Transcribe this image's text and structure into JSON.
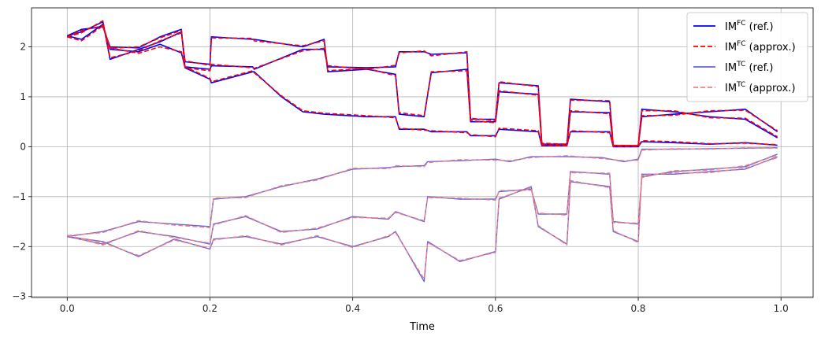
{
  "chart_data": {
    "type": "line",
    "title": "",
    "xlabel": "Time",
    "ylabel": "",
    "xlim": [
      -0.05,
      1.045
    ],
    "ylim": [
      -3.02,
      2.78
    ],
    "xticks": [
      0.0,
      0.2,
      0.4,
      0.6,
      0.8,
      1.0
    ],
    "xtick_labels": [
      "0.0",
      "0.2",
      "0.4",
      "0.6",
      "0.8",
      "1.0"
    ],
    "yticks": [
      -3,
      -2,
      -1,
      0,
      1,
      2
    ],
    "ytick_labels": [
      "−3",
      "−2",
      "−1",
      "0",
      "1",
      "2"
    ],
    "grid": true,
    "legend_position": "top-right",
    "legend": [
      {
        "base": "IM",
        "sup": "FC",
        "suffix": " (ref.)",
        "color": "#0000ff",
        "dash": "solid"
      },
      {
        "base": "IM",
        "sup": "FC",
        "suffix": " (approx.)",
        "color": "#ff0000",
        "dash": "dashed"
      },
      {
        "base": "IM",
        "sup": "TC",
        "suffix": " (ref.)",
        "color": "#6666dd",
        "dash": "solid"
      },
      {
        "base": "IM",
        "sup": "TC",
        "suffix": " (approx.)",
        "color": "#f08080",
        "dash": "dashed"
      }
    ],
    "series": [
      {
        "group": "FC",
        "kind": "ref",
        "x": [
          0.0,
          0.02,
          0.05,
          0.06,
          0.1,
          0.13,
          0.16,
          0.165,
          0.2,
          0.202,
          0.26,
          0.262,
          0.33,
          0.36,
          0.365,
          0.42,
          0.46,
          0.465,
          0.5,
          0.51,
          0.56,
          0.565,
          0.6,
          0.605,
          0.66,
          0.665,
          0.7,
          0.705,
          0.76,
          0.765,
          0.8,
          0.805,
          0.85,
          0.9,
          0.95,
          0.995
        ],
        "y": [
          2.22,
          2.15,
          2.45,
          1.95,
          1.9,
          2.05,
          1.88,
          1.6,
          1.55,
          1.62,
          1.6,
          1.55,
          1.95,
          1.95,
          1.6,
          1.58,
          1.6,
          1.9,
          1.9,
          1.85,
          1.88,
          0.55,
          0.55,
          1.28,
          1.22,
          0.05,
          0.05,
          0.95,
          0.9,
          0.02,
          0.02,
          0.75,
          0.7,
          0.6,
          0.55,
          0.18
        ]
      },
      {
        "group": "FC",
        "kind": "ref",
        "x": [
          0.0,
          0.02,
          0.05,
          0.06,
          0.1,
          0.13,
          0.16,
          0.165,
          0.2,
          0.202,
          0.26,
          0.262,
          0.33,
          0.36,
          0.365,
          0.42,
          0.46,
          0.465,
          0.5,
          0.51,
          0.56,
          0.565,
          0.6,
          0.605,
          0.66,
          0.665,
          0.7,
          0.705,
          0.76,
          0.765,
          0.8,
          0.805,
          0.85,
          0.9,
          0.95,
          0.995
        ],
        "y": [
          2.22,
          2.3,
          2.5,
          1.75,
          1.95,
          2.1,
          2.3,
          1.7,
          1.65,
          2.2,
          2.15,
          2.15,
          2.0,
          2.15,
          1.5,
          1.55,
          1.45,
          0.65,
          0.6,
          1.48,
          1.55,
          0.5,
          0.5,
          1.1,
          1.05,
          0.02,
          0.02,
          0.7,
          0.68,
          0.01,
          0.01,
          0.6,
          0.65,
          0.7,
          0.75,
          0.3
        ]
      },
      {
        "group": "FC",
        "kind": "ref",
        "x": [
          0.0,
          0.02,
          0.05,
          0.06,
          0.1,
          0.13,
          0.16,
          0.165,
          0.2,
          0.202,
          0.26,
          0.262,
          0.3,
          0.33,
          0.36,
          0.42,
          0.46,
          0.465,
          0.5,
          0.51,
          0.56,
          0.565,
          0.6,
          0.605,
          0.66,
          0.665,
          0.7,
          0.705,
          0.76,
          0.765,
          0.8,
          0.805,
          0.85,
          0.9,
          0.95,
          0.995
        ],
        "y": [
          2.22,
          2.35,
          2.4,
          2.0,
          1.98,
          2.2,
          2.35,
          1.58,
          1.35,
          1.28,
          1.5,
          1.5,
          1.0,
          0.7,
          0.65,
          0.6,
          0.6,
          0.35,
          0.35,
          0.3,
          0.3,
          0.22,
          0.22,
          0.35,
          0.3,
          0.02,
          0.02,
          0.3,
          0.3,
          0.0,
          0.0,
          0.1,
          0.08,
          0.05,
          0.08,
          0.03
        ]
      },
      {
        "group": "FC",
        "kind": "approx",
        "x": [
          0.0,
          0.02,
          0.05,
          0.06,
          0.1,
          0.13,
          0.16,
          0.165,
          0.2,
          0.202,
          0.26,
          0.262,
          0.33,
          0.36,
          0.365,
          0.42,
          0.46,
          0.465,
          0.5,
          0.51,
          0.56,
          0.565,
          0.6,
          0.605,
          0.66,
          0.665,
          0.7,
          0.705,
          0.76,
          0.765,
          0.8,
          0.805,
          0.85,
          0.9,
          0.95,
          0.995
        ],
        "y": [
          2.2,
          2.12,
          2.42,
          1.98,
          1.87,
          2.0,
          1.9,
          1.58,
          1.52,
          1.65,
          1.58,
          1.57,
          1.92,
          1.97,
          1.62,
          1.55,
          1.63,
          1.88,
          1.92,
          1.82,
          1.9,
          0.57,
          0.52,
          1.3,
          1.2,
          0.07,
          0.05,
          0.93,
          0.92,
          0.03,
          0.02,
          0.72,
          0.72,
          0.58,
          0.57,
          0.2
        ]
      },
      {
        "group": "FC",
        "kind": "approx",
        "x": [
          0.0,
          0.02,
          0.05,
          0.06,
          0.1,
          0.13,
          0.16,
          0.165,
          0.2,
          0.202,
          0.26,
          0.262,
          0.33,
          0.36,
          0.365,
          0.42,
          0.46,
          0.465,
          0.5,
          0.51,
          0.56,
          0.565,
          0.6,
          0.605,
          0.66,
          0.665,
          0.7,
          0.705,
          0.76,
          0.765,
          0.8,
          0.805,
          0.85,
          0.9,
          0.95,
          0.995
        ],
        "y": [
          2.2,
          2.28,
          2.52,
          1.78,
          1.92,
          2.12,
          2.28,
          1.72,
          1.63,
          2.18,
          2.17,
          2.12,
          2.02,
          2.12,
          1.52,
          1.57,
          1.42,
          0.68,
          0.62,
          1.5,
          1.52,
          0.52,
          0.48,
          1.12,
          1.03,
          0.04,
          0.03,
          0.72,
          0.66,
          0.02,
          0.02,
          0.62,
          0.63,
          0.72,
          0.73,
          0.32
        ]
      },
      {
        "group": "FC",
        "kind": "approx",
        "x": [
          0.0,
          0.02,
          0.05,
          0.06,
          0.1,
          0.13,
          0.16,
          0.165,
          0.2,
          0.202,
          0.26,
          0.262,
          0.3,
          0.33,
          0.36,
          0.42,
          0.46,
          0.465,
          0.5,
          0.51,
          0.56,
          0.565,
          0.6,
          0.605,
          0.66,
          0.665,
          0.7,
          0.705,
          0.76,
          0.765,
          0.8,
          0.805,
          0.85,
          0.9,
          0.95,
          0.995
        ],
        "y": [
          2.2,
          2.33,
          2.42,
          1.97,
          2.0,
          2.18,
          2.33,
          1.6,
          1.37,
          1.3,
          1.52,
          1.48,
          1.02,
          0.72,
          0.67,
          0.62,
          0.58,
          0.37,
          0.33,
          0.32,
          0.28,
          0.24,
          0.2,
          0.37,
          0.32,
          0.03,
          0.02,
          0.32,
          0.28,
          0.01,
          0.01,
          0.12,
          0.1,
          0.06,
          0.07,
          0.04
        ]
      },
      {
        "group": "TC",
        "kind": "ref",
        "x": [
          0.0,
          0.05,
          0.1,
          0.15,
          0.2,
          0.205,
          0.25,
          0.3,
          0.35,
          0.4,
          0.45,
          0.46,
          0.5,
          0.505,
          0.55,
          0.6,
          0.62,
          0.65,
          0.7,
          0.75,
          0.78,
          0.8,
          0.805,
          0.85,
          0.9,
          0.95,
          0.995
        ],
        "y": [
          -1.8,
          -1.7,
          -1.5,
          -1.55,
          -1.6,
          -1.05,
          -1.0,
          -0.8,
          -0.65,
          -0.45,
          -0.42,
          -0.4,
          -0.38,
          -0.3,
          -0.28,
          -0.25,
          -0.3,
          -0.2,
          -0.2,
          -0.22,
          -0.3,
          -0.25,
          -0.05,
          -0.05,
          -0.04,
          -0.03,
          -0.02
        ]
      },
      {
        "group": "TC",
        "kind": "ref",
        "x": [
          0.0,
          0.05,
          0.1,
          0.15,
          0.2,
          0.205,
          0.25,
          0.3,
          0.35,
          0.4,
          0.45,
          0.46,
          0.5,
          0.505,
          0.55,
          0.6,
          0.605,
          0.65,
          0.66,
          0.7,
          0.705,
          0.76,
          0.765,
          0.8,
          0.805,
          0.85,
          0.9,
          0.95,
          0.995
        ],
        "y": [
          -1.8,
          -1.95,
          -1.7,
          -1.8,
          -1.95,
          -1.55,
          -1.4,
          -1.7,
          -1.65,
          -1.4,
          -1.45,
          -1.3,
          -1.5,
          -1.0,
          -1.05,
          -1.05,
          -0.9,
          -0.85,
          -1.35,
          -1.35,
          -0.5,
          -0.55,
          -1.5,
          -1.55,
          -0.6,
          -0.5,
          -0.45,
          -0.4,
          -0.15
        ]
      },
      {
        "group": "TC",
        "kind": "ref",
        "x": [
          0.0,
          0.05,
          0.1,
          0.15,
          0.2,
          0.205,
          0.25,
          0.3,
          0.35,
          0.4,
          0.45,
          0.46,
          0.5,
          0.505,
          0.55,
          0.6,
          0.605,
          0.65,
          0.66,
          0.7,
          0.705,
          0.76,
          0.765,
          0.8,
          0.805,
          0.85,
          0.9,
          0.95,
          0.995
        ],
        "y": [
          -1.8,
          -1.9,
          -2.2,
          -1.85,
          -2.05,
          -1.85,
          -1.8,
          -1.95,
          -1.8,
          -2.0,
          -1.8,
          -1.7,
          -2.7,
          -1.9,
          -2.3,
          -2.1,
          -1.05,
          -0.8,
          -1.6,
          -1.95,
          -0.7,
          -0.8,
          -1.7,
          -1.9,
          -0.55,
          -0.55,
          -0.5,
          -0.45,
          -0.2
        ]
      },
      {
        "group": "TC",
        "kind": "approx",
        "x": [
          0.0,
          0.05,
          0.1,
          0.15,
          0.2,
          0.205,
          0.25,
          0.3,
          0.35,
          0.4,
          0.45,
          0.46,
          0.5,
          0.505,
          0.55,
          0.6,
          0.62,
          0.65,
          0.7,
          0.75,
          0.78,
          0.8,
          0.805,
          0.85,
          0.9,
          0.95,
          0.995
        ],
        "y": [
          -1.78,
          -1.72,
          -1.48,
          -1.57,
          -1.62,
          -1.03,
          -1.02,
          -0.78,
          -0.67,
          -0.43,
          -0.44,
          -0.38,
          -0.4,
          -0.32,
          -0.26,
          -0.27,
          -0.28,
          -0.22,
          -0.18,
          -0.24,
          -0.28,
          -0.27,
          -0.07,
          -0.04,
          -0.05,
          -0.02,
          -0.03
        ]
      },
      {
        "group": "TC",
        "kind": "approx",
        "x": [
          0.0,
          0.05,
          0.1,
          0.15,
          0.2,
          0.205,
          0.25,
          0.3,
          0.35,
          0.4,
          0.45,
          0.46,
          0.5,
          0.505,
          0.55,
          0.6,
          0.605,
          0.65,
          0.66,
          0.7,
          0.705,
          0.76,
          0.765,
          0.8,
          0.805,
          0.85,
          0.9,
          0.95,
          0.995
        ],
        "y": [
          -1.78,
          -1.97,
          -1.68,
          -1.82,
          -1.93,
          -1.57,
          -1.38,
          -1.72,
          -1.63,
          -1.42,
          -1.43,
          -1.32,
          -1.48,
          -1.02,
          -1.03,
          -1.07,
          -0.88,
          -0.87,
          -1.33,
          -1.37,
          -0.52,
          -0.53,
          -1.52,
          -1.53,
          -0.62,
          -0.48,
          -0.47,
          -0.38,
          -0.17
        ]
      },
      {
        "group": "TC",
        "kind": "approx",
        "x": [
          0.0,
          0.05,
          0.1,
          0.15,
          0.2,
          0.205,
          0.25,
          0.3,
          0.35,
          0.4,
          0.45,
          0.46,
          0.5,
          0.505,
          0.55,
          0.6,
          0.605,
          0.65,
          0.66,
          0.7,
          0.705,
          0.76,
          0.765,
          0.8,
          0.805,
          0.85,
          0.9,
          0.95,
          0.995
        ],
        "y": [
          -1.78,
          -1.92,
          -2.18,
          -1.87,
          -2.03,
          -1.87,
          -1.78,
          -1.97,
          -1.78,
          -2.02,
          -1.78,
          -1.72,
          -2.65,
          -1.92,
          -2.28,
          -2.12,
          -1.03,
          -0.82,
          -1.58,
          -1.97,
          -0.68,
          -0.82,
          -1.68,
          -1.92,
          -0.57,
          -0.53,
          -0.52,
          -0.43,
          -0.22
        ]
      }
    ]
  },
  "colors": {
    "FC_ref": "#0000ff",
    "FC_approx": "#ff0000",
    "TC_ref": "#6666dd",
    "TC_approx": "#f08080",
    "grid": "#b0b0b0"
  }
}
